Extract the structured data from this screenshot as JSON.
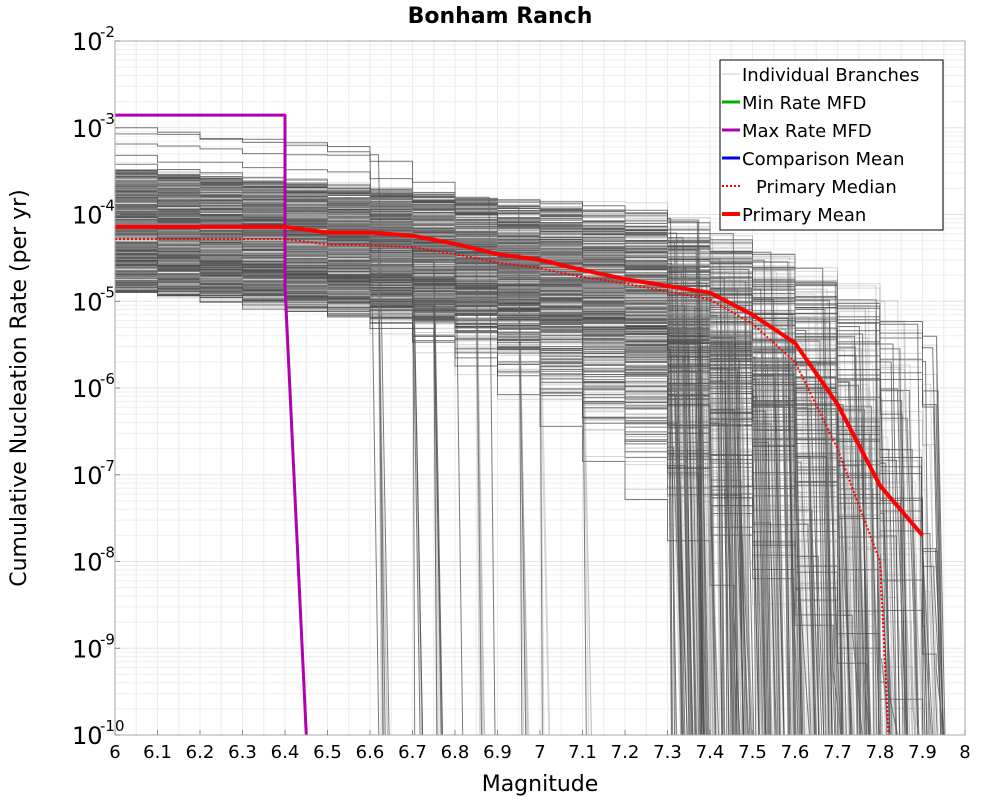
{
  "chart_data": {
    "type": "line",
    "title": "Bonham Ranch",
    "xlabel": "Magnitude",
    "ylabel": "Cumulative Nucleation Rate (per yr)",
    "xlim": [
      6,
      8
    ],
    "ylim": [
      1e-10,
      0.01
    ],
    "yscale": "log",
    "grid": true,
    "legend_position": "top-right",
    "xticks": [
      6,
      6.1,
      6.2,
      6.3,
      6.4,
      6.5,
      6.6,
      6.7,
      6.8,
      6.9,
      7,
      7.1,
      7.2,
      7.3,
      7.4,
      7.5,
      7.6,
      7.7,
      7.8,
      7.9,
      8
    ],
    "xtick_labels": [
      "6",
      "6.1",
      "6.2",
      "6.3",
      "6.4",
      "6.5",
      "6.6",
      "6.7",
      "6.8",
      "6.9",
      "7",
      "7.1",
      "7.2",
      "7.3",
      "7.4",
      "7.5",
      "7.6",
      "7.7",
      "7.8",
      "7.9",
      "8"
    ],
    "yticks": [
      {
        "value": 0.01,
        "base": "10",
        "exp": "-2"
      },
      {
        "value": 0.001,
        "base": "10",
        "exp": "-3"
      },
      {
        "value": 0.0001,
        "base": "10",
        "exp": "-4"
      },
      {
        "value": 1e-05,
        "base": "10",
        "exp": "-5"
      },
      {
        "value": 1e-06,
        "base": "10",
        "exp": "-6"
      },
      {
        "value": 1e-07,
        "base": "10",
        "exp": "-7"
      },
      {
        "value": 1e-08,
        "base": "10",
        "exp": "-8"
      },
      {
        "value": 1e-09,
        "base": "10",
        "exp": "-9"
      },
      {
        "value": 1e-10,
        "base": "10",
        "exp": "-10"
      }
    ],
    "legend": [
      {
        "label": "Individual Branches",
        "color": "#c8c8c8",
        "style": "thin"
      },
      {
        "label": "Min Rate MFD",
        "color": "#00b000",
        "style": "solid"
      },
      {
        "label": "Max Rate MFD",
        "color": "#b000b0",
        "style": "solid"
      },
      {
        "label": "Comparison Mean",
        "color": "#0000ee",
        "style": "solid"
      },
      {
        "label": "Primary Median",
        "color": "#ff0000",
        "style": "dotted"
      },
      {
        "label": "Primary Mean",
        "color": "#ff0000",
        "style": "thick"
      }
    ],
    "series": [
      {
        "name": "Max Rate MFD",
        "color": "#b000b0",
        "x": [
          6.0,
          6.4,
          6.4,
          6.45
        ],
        "y": [
          0.0014,
          0.0014,
          1.5e-05,
          1e-10
        ]
      },
      {
        "name": "Primary Mean",
        "color": "#ff0000",
        "x": [
          6.0,
          6.4,
          6.5,
          6.6,
          6.7,
          6.8,
          6.9,
          7.0,
          7.1,
          7.2,
          7.3,
          7.4,
          7.5,
          7.6,
          7.7,
          7.8,
          7.9
        ],
        "y": [
          7.2e-05,
          7.2e-05,
          6.2e-05,
          6.2e-05,
          5.7e-05,
          4.6e-05,
          3.5e-05,
          3e-05,
          2.3e-05,
          1.8e-05,
          1.5e-05,
          1.25e-05,
          7e-06,
          3.3e-06,
          6.5e-07,
          7.5e-08,
          2e-08
        ]
      },
      {
        "name": "Primary Median",
        "color": "#ff0000",
        "x": [
          6.0,
          6.4,
          6.5,
          6.6,
          6.7,
          6.8,
          6.9,
          7.0,
          7.1,
          7.2,
          7.3,
          7.4,
          7.5,
          7.6,
          7.7,
          7.8,
          7.82
        ],
        "y": [
          5.2e-05,
          5.2e-05,
          4.5e-05,
          4.4e-05,
          4.2e-05,
          3.5e-05,
          2.8e-05,
          2.4e-05,
          1.9e-05,
          1.6e-05,
          1.3e-05,
          1.05e-05,
          5.5e-06,
          2e-06,
          2e-07,
          1e-08,
          1e-10
        ]
      }
    ],
    "branches_note": "Individual Branches: several hundred gray cumulative MFD curves, starting between about 1.2e-5 and 1.0e-3 at M6 and truncating at maximum magnitudes between about 6.6 and 7.9"
  }
}
